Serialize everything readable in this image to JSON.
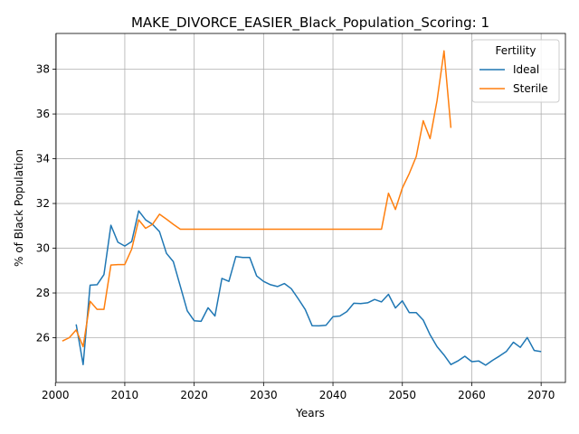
{
  "chart_data": {
    "type": "line",
    "title": "MAKE_DIVORCE_EASIER_Black_Population_Scoring: 1",
    "xlabel": "Years",
    "ylabel": "% of Black Population",
    "xlim": [
      2000.1,
      2073.5
    ],
    "ylim": [
      24.0,
      39.6
    ],
    "xticks": [
      2000,
      2010,
      2020,
      2030,
      2040,
      2050,
      2060,
      2070
    ],
    "yticks": [
      26,
      28,
      30,
      32,
      34,
      36,
      38
    ],
    "grid": true,
    "legend": {
      "title": "Fertility",
      "placement": "top-right"
    },
    "series": [
      {
        "name": "Ideal",
        "color": "#1f77b4",
        "x": [
          2003,
          2004,
          2005,
          2006,
          2007,
          2008,
          2009,
          2010,
          2011,
          2012,
          2013,
          2014,
          2015,
          2016,
          2017,
          2018,
          2019,
          2020,
          2021,
          2022,
          2023,
          2024,
          2025,
          2026,
          2027,
          2028,
          2029,
          2030,
          2031,
          2032,
          2033,
          2034,
          2035,
          2036,
          2037,
          2038,
          2039,
          2040,
          2041,
          2042,
          2043,
          2044,
          2045,
          2046,
          2047,
          2048,
          2049,
          2050,
          2051,
          2052,
          2053,
          2054,
          2055,
          2056,
          2057,
          2058,
          2059,
          2060,
          2061,
          2062,
          2063,
          2064,
          2065,
          2066,
          2067,
          2068,
          2069,
          2070
        ],
        "y": [
          26.6,
          24.8,
          28.35,
          28.37,
          28.82,
          31.03,
          30.27,
          30.1,
          30.3,
          31.67,
          31.27,
          31.07,
          30.74,
          29.77,
          29.4,
          28.3,
          27.2,
          26.76,
          26.73,
          27.34,
          26.97,
          28.65,
          28.52,
          29.63,
          29.59,
          29.59,
          28.76,
          28.52,
          28.37,
          28.29,
          28.42,
          28.19,
          27.74,
          27.26,
          26.54,
          26.53,
          26.56,
          26.94,
          26.97,
          27.17,
          27.54,
          27.53,
          27.56,
          27.71,
          27.6,
          27.94,
          27.33,
          27.65,
          27.12,
          27.12,
          26.79,
          26.13,
          25.6,
          25.23,
          24.8,
          24.96,
          25.17,
          24.93,
          24.96,
          24.77,
          24.99,
          25.18,
          25.39,
          25.8,
          25.57,
          26.01,
          25.43,
          25.38
        ]
      },
      {
        "name": "Sterile",
        "color": "#ff7f0e",
        "x": [
          2001,
          2002,
          2003,
          2004,
          2005,
          2006,
          2007,
          2008,
          2009,
          2010,
          2011,
          2012,
          2013,
          2014,
          2015,
          2016,
          2017,
          2018,
          2019,
          2020,
          2021,
          2022,
          2023,
          2024,
          2025,
          2026,
          2027,
          2028,
          2029,
          2030,
          2031,
          2032,
          2033,
          2034,
          2035,
          2036,
          2037,
          2038,
          2039,
          2040,
          2041,
          2042,
          2043,
          2044,
          2045,
          2046,
          2047,
          2048,
          2049,
          2050,
          2051,
          2052,
          2053,
          2054,
          2055,
          2056,
          2057
        ],
        "y": [
          25.85,
          26.0,
          26.35,
          25.6,
          27.63,
          27.27,
          27.27,
          29.25,
          29.27,
          29.27,
          29.96,
          31.27,
          30.89,
          31.07,
          31.52,
          31.3,
          31.07,
          30.85,
          30.85,
          30.85,
          30.85,
          30.85,
          30.85,
          30.85,
          30.85,
          30.85,
          30.85,
          30.85,
          30.85,
          30.85,
          30.85,
          30.85,
          30.85,
          30.85,
          30.85,
          30.85,
          30.85,
          30.85,
          30.85,
          30.85,
          30.85,
          30.85,
          30.85,
          30.85,
          30.85,
          30.85,
          30.85,
          32.46,
          31.73,
          32.69,
          33.34,
          34.1,
          35.7,
          34.9,
          36.6,
          38.82,
          35.38
        ]
      }
    ]
  }
}
